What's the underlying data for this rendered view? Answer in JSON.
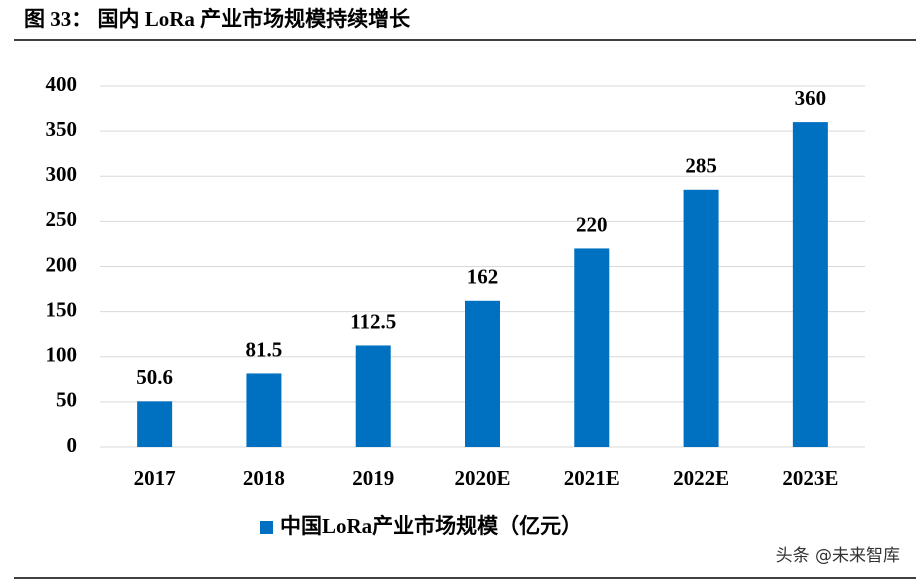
{
  "chart_data": {
    "type": "bar",
    "title": "图 33： 国内 LoRa 产业市场规模持续增长",
    "categories": [
      "2017",
      "2018",
      "2019",
      "2020E",
      "2021E",
      "2022E",
      "2023E"
    ],
    "series": [
      {
        "name": "中国LoRa产业市场规模（亿元）",
        "color": "#0070c0",
        "values": [
          50.6,
          81.5,
          112.5,
          162,
          220,
          285,
          360
        ]
      }
    ],
    "ylim": [
      0,
      400
    ],
    "yticks": [
      0,
      50,
      100,
      150,
      200,
      250,
      300,
      350,
      400
    ],
    "grid": true,
    "legend": "bottom",
    "watermark": "头条 @未来智库"
  }
}
